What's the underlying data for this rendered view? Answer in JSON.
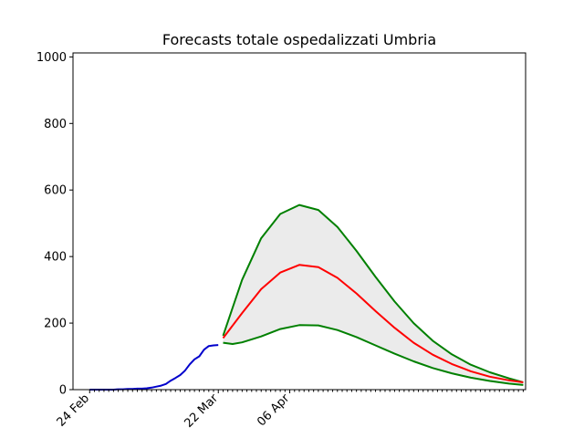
{
  "chart_data": {
    "type": "line",
    "title": "Forecasts totale ospedalizzati Umbria",
    "xlabel": "",
    "ylabel": "",
    "ylim": [
      0,
      1000
    ],
    "y_ticks": [
      "0",
      "200",
      "400",
      "600",
      "800",
      "1000"
    ],
    "x_tick_labels": [
      "24 Feb",
      "22 Mar",
      "06 Apr"
    ],
    "x_tick_label_days": [
      0,
      27,
      42
    ],
    "x_range_days": [
      -3.5,
      91.5
    ],
    "grid": false,
    "legend": "none",
    "colors": {
      "observed": "#0000cc",
      "forecast": "#ff0000",
      "bounds": "#008000",
      "band": "#ebebeb"
    },
    "series": [
      {
        "role": "observed",
        "x": [
          0,
          1,
          2,
          3,
          4,
          5,
          6,
          7,
          8,
          9,
          10,
          11,
          12,
          13,
          14,
          15,
          16,
          17,
          18,
          19,
          20,
          21,
          22,
          23,
          24,
          25,
          26,
          27
        ],
        "values": [
          0,
          0,
          0,
          0,
          0,
          0,
          1,
          1,
          2,
          2,
          3,
          3,
          4,
          6,
          9,
          12,
          17,
          27,
          35,
          44,
          57,
          76,
          91,
          100,
          120,
          131,
          133,
          134
        ]
      },
      {
        "role": "forecast",
        "x": [
          28,
          32,
          36,
          40,
          44,
          48,
          52,
          56,
          60,
          64,
          68,
          72,
          76,
          80,
          84,
          88,
          91
        ],
        "values": [
          155,
          230,
          302,
          352,
          375,
          368,
          336,
          289,
          236,
          186,
          141,
          105,
          77,
          55,
          39,
          28,
          22
        ]
      },
      {
        "role": "upper",
        "x": [
          28,
          32,
          36,
          40,
          44,
          48,
          52,
          56,
          60,
          64,
          68,
          72,
          76,
          80,
          84,
          88,
          91
        ],
        "values": [
          162,
          330,
          455,
          528,
          555,
          540,
          489,
          417,
          339,
          265,
          200,
          147,
          106,
          75,
          52,
          34,
          22
        ]
      },
      {
        "role": "lower",
        "x": [
          28,
          30,
          32,
          36,
          40,
          44,
          48,
          52,
          56,
          60,
          64,
          68,
          72,
          76,
          80,
          84,
          88,
          91
        ],
        "values": [
          141,
          137,
          142,
          160,
          182,
          194,
          193,
          179,
          158,
          133,
          108,
          85,
          65,
          49,
          36,
          26,
          18,
          14
        ]
      }
    ]
  }
}
